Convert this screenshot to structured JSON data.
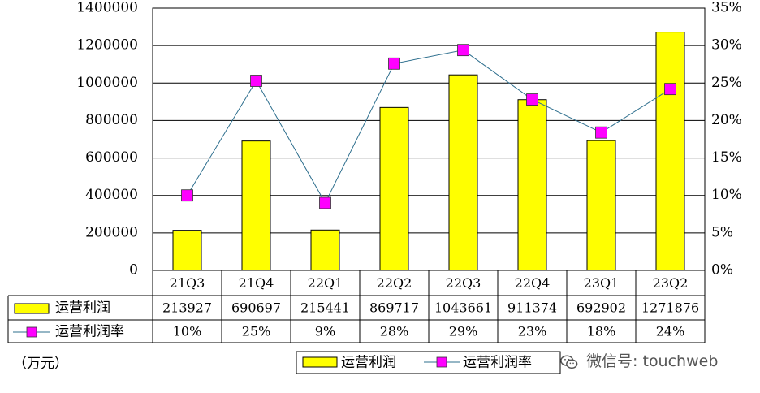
{
  "unit_label": "（万元）",
  "watermark": "微信号: touchweb",
  "colors": {
    "bar": "#ffff00",
    "line": "#2e6f8e",
    "marker": "#ff00ff",
    "grid": "#000000"
  },
  "chart_data": {
    "type": "bar",
    "categories": [
      "21Q3",
      "21Q4",
      "22Q1",
      "22Q2",
      "22Q3",
      "22Q4",
      "23Q1",
      "23Q2"
    ],
    "series": [
      {
        "name": "运营利润",
        "type": "bar",
        "axis": "left",
        "values": [
          213927,
          690697,
          215441,
          869717,
          1043661,
          911374,
          692902,
          1271876
        ]
      },
      {
        "name": "运营利润率",
        "type": "line",
        "axis": "right",
        "values": [
          10,
          25,
          9,
          28,
          29,
          23,
          18,
          24
        ],
        "plotted": [
          10,
          25.3,
          9,
          27.6,
          29.4,
          22.8,
          18.4,
          24.2
        ]
      }
    ],
    "y_left": {
      "lim": [
        0,
        1400000
      ],
      "ticks": [
        "0",
        "200000",
        "400000",
        "600000",
        "800000",
        "1000000",
        "1200000",
        "1400000"
      ]
    },
    "y_right": {
      "lim": [
        0,
        35
      ],
      "ticks": [
        "0%",
        "5%",
        "10%",
        "15%",
        "20%",
        "25%",
        "30%",
        "35%"
      ]
    },
    "table": {
      "rows": [
        {
          "label": "运营利润",
          "cells": [
            "213927",
            "690697",
            "215441",
            "869717",
            "1043661",
            "911374",
            "692902",
            "1271876"
          ]
        },
        {
          "label": "运营利润率",
          "cells": [
            "10%",
            "25%",
            "9%",
            "28%",
            "29%",
            "23%",
            "18%",
            "24%"
          ]
        }
      ]
    },
    "legend": {
      "position": "bottom",
      "items": [
        "运营利润",
        "运营利润率"
      ]
    },
    "grid": true
  }
}
